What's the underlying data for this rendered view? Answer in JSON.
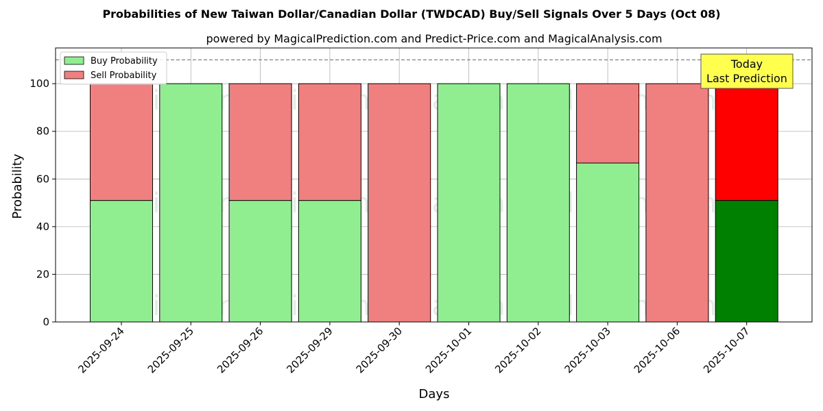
{
  "chart_data": {
    "type": "bar",
    "stacked": true,
    "title": "Probabilities of New Taiwan Dollar/Canadian Dollar (TWDCAD) Buy/Sell Signals Over 5 Days (Oct 08)",
    "subtitle": "powered by MagicalPrediction.com and Predict-Price.com and MagicalAnalysis.com",
    "xlabel": "Days",
    "ylabel": "Probability",
    "ylim": [
      0,
      115
    ],
    "yticks": [
      0,
      20,
      40,
      60,
      80,
      100
    ],
    "reference_line": 110,
    "grid": true,
    "legend_position": "top-left",
    "categories": [
      "2025-09-24",
      "2025-09-25",
      "2025-09-26",
      "2025-09-29",
      "2025-09-30",
      "2025-10-01",
      "2025-10-02",
      "2025-10-03",
      "2025-10-06",
      "2025-10-07"
    ],
    "series": [
      {
        "name": "Buy Probability",
        "color": "#90ee90",
        "highlight_color": "#008000",
        "values": [
          51,
          100,
          51,
          51,
          0,
          100,
          100,
          66.7,
          0,
          51
        ]
      },
      {
        "name": "Sell Probability",
        "color": "#f08080",
        "highlight_color": "#ff0000",
        "values": [
          49,
          0,
          49,
          49,
          100,
          0,
          0,
          33.3,
          100,
          49
        ]
      }
    ],
    "highlight_index": 9,
    "annotation": {
      "line1": "Today",
      "line2": "Last Prediction",
      "bg_color": "#ffff4d"
    },
    "watermarks": [
      "MagicalAnalysis.com",
      "MagicalPrediction.com"
    ]
  }
}
